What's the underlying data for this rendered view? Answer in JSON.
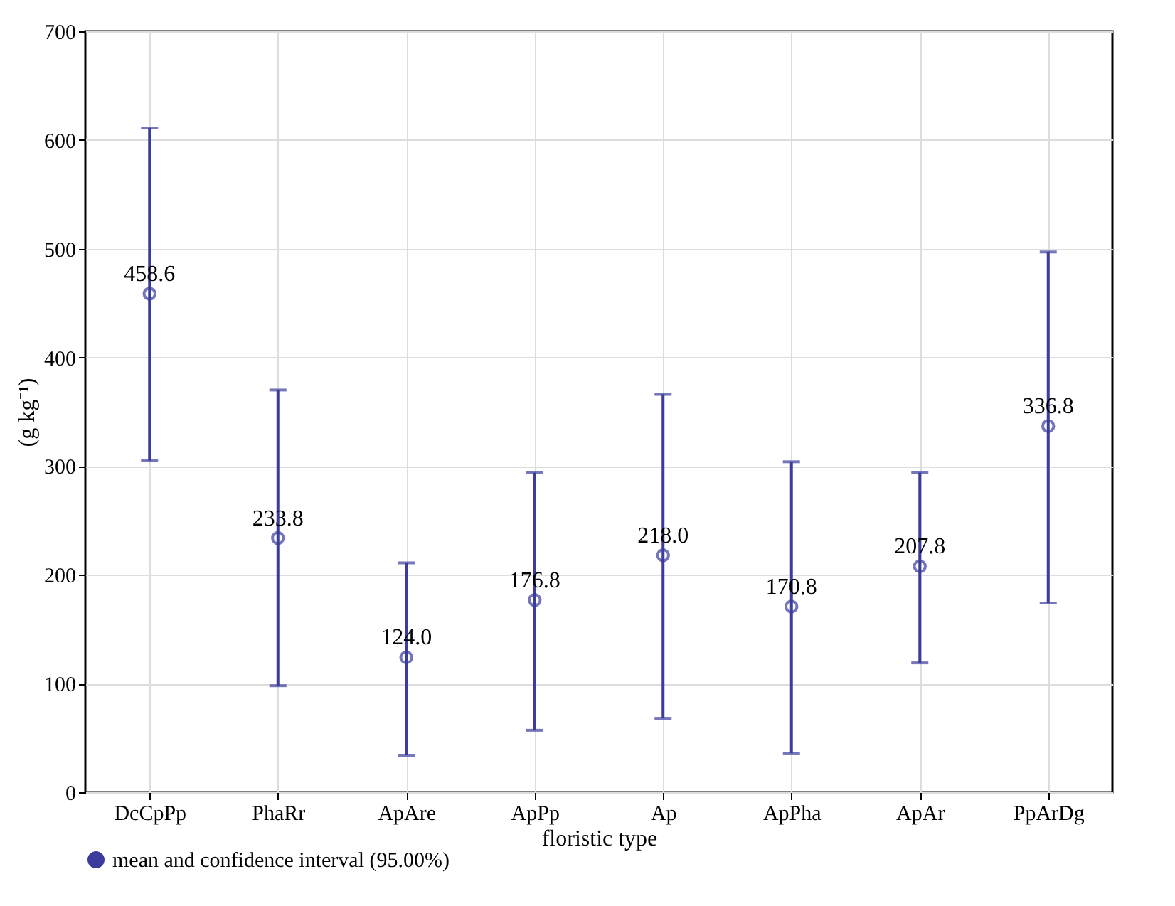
{
  "chart_data": {
    "type": "scatter",
    "xlabel": "floristic type",
    "ylabel": "(g kg⁻¹)",
    "categories": [
      "DcCpPp",
      "PhaRr",
      "ApAre",
      "ApPp",
      "Ap",
      "ApPha",
      "ApAr",
      "PpArDg"
    ],
    "series": [
      {
        "name": "mean and confidence interval (95.00%)",
        "color": "#3c3c9c",
        "values": [
          458.6,
          233.8,
          124.0,
          176.8,
          218.0,
          170.8,
          207.8,
          336.8
        ],
        "errors": [
          [
            305,
            611
          ],
          [
            98,
            370
          ],
          [
            34,
            211
          ],
          [
            57,
            294
          ],
          [
            68,
            366
          ],
          [
            36,
            304
          ],
          [
            119,
            294
          ],
          [
            174,
            497
          ]
        ],
        "value_labels": [
          "458.6",
          "233.8",
          "124.0",
          "176.8",
          "218.0",
          "170.8",
          "207.8",
          "336.8"
        ]
      }
    ],
    "ylim": [
      0,
      700
    ],
    "yticks": [
      0,
      100,
      200,
      300,
      400,
      500,
      600,
      700
    ],
    "grid": true,
    "legend": "bottom",
    "marker": "circle"
  }
}
